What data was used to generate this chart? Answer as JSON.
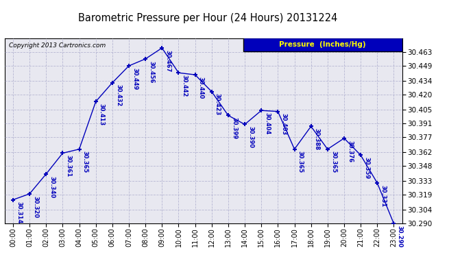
{
  "title": "Barometric Pressure per Hour (24 Hours) 20131224",
  "copyright": "Copyright 2013 Cartronics.com",
  "legend_label": "Pressure  (Inches/Hg)",
  "hours": [
    0,
    1,
    2,
    3,
    4,
    5,
    6,
    7,
    8,
    9,
    10,
    11,
    12,
    13,
    14,
    15,
    16,
    17,
    18,
    19,
    20,
    21,
    22,
    23
  ],
  "values": [
    30.314,
    30.32,
    30.34,
    30.361,
    30.365,
    30.413,
    30.432,
    30.449,
    30.456,
    30.467,
    30.442,
    30.44,
    30.423,
    30.399,
    30.39,
    30.404,
    30.403,
    30.365,
    30.388,
    30.365,
    30.376,
    30.359,
    30.331,
    30.29
  ],
  "ylim_min": 30.29,
  "ylim_max": 30.4765,
  "yticks": [
    30.29,
    30.304,
    30.319,
    30.333,
    30.348,
    30.362,
    30.377,
    30.391,
    30.405,
    30.42,
    30.434,
    30.449,
    30.463
  ],
  "line_color": "#0000bb",
  "marker_color": "#0000bb",
  "bg_color": "#ffffff",
  "plot_bg_color": "#e8e8f0",
  "grid_color": "#aaaacc",
  "title_color": "#000000",
  "label_color": "#0000bb",
  "legend_bg": "#0000bb",
  "legend_fg": "#ffff00",
  "x_tick_labels": [
    "00:00",
    "01:00",
    "02:00",
    "03:00",
    "04:00",
    "05:00",
    "06:00",
    "07:00",
    "08:00",
    "09:00",
    "10:00",
    "11:00",
    "12:00",
    "13:00",
    "14:00",
    "15:00",
    "16:00",
    "17:00",
    "18:00",
    "19:00",
    "20:00",
    "21:00",
    "22:00",
    "23:00"
  ]
}
